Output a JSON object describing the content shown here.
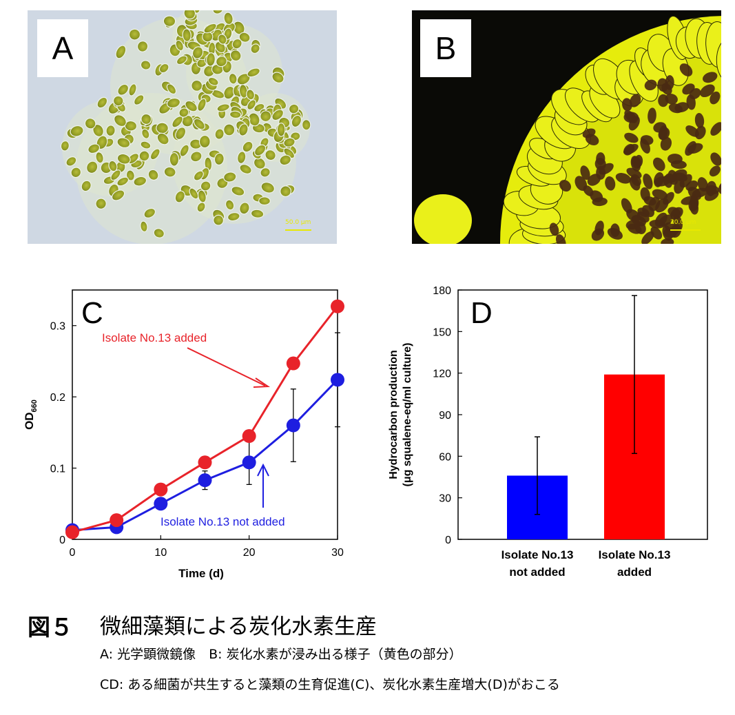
{
  "panels": {
    "a": {
      "letter": "A",
      "scale_label": "50.0 μm"
    },
    "b": {
      "letter": "B",
      "scale_label": "20.0 μm"
    },
    "c": {
      "letter": "C"
    },
    "d": {
      "letter": "D"
    }
  },
  "chart_data": [
    {
      "type": "line",
      "panel": "C",
      "title": "",
      "xlabel": "Time (d)",
      "ylabel": "OD660",
      "ylabel_main": "OD",
      "ylabel_sub": "660",
      "xlim": [
        0,
        30
      ],
      "ylim": [
        0,
        0.35
      ],
      "xticks": [
        0,
        10,
        20,
        30
      ],
      "yticks": [
        0,
        0.1,
        0.2,
        0.3
      ],
      "ytick_labels": [
        "0",
        "0.1",
        "0.2",
        "0.3"
      ],
      "grid": false,
      "series": [
        {
          "name": "Isolate No.13 added",
          "color": "#e8232a",
          "x": [
            0,
            5,
            10,
            15,
            20,
            25,
            30
          ],
          "y": [
            0.01,
            0.027,
            0.07,
            0.108,
            0.145,
            0.247,
            0.327
          ]
        },
        {
          "name": "Isolate No.13 not added",
          "color": "#1e1ee0",
          "x": [
            0,
            5,
            10,
            15,
            20,
            25,
            30
          ],
          "y": [
            0.013,
            0.017,
            0.05,
            0.083,
            0.108,
            0.16,
            0.224
          ],
          "error": [
            0.001,
            0.002,
            0.004,
            0.013,
            0.031,
            0.051,
            0.066
          ]
        }
      ]
    },
    {
      "type": "bar",
      "panel": "D",
      "title": "",
      "xlabel": "",
      "ylabel_line1": "Hydrocarbon production",
      "ylabel_line2": "(μg squalene-eq/ml culture)",
      "ylim": [
        0,
        180
      ],
      "yticks": [
        0,
        30,
        60,
        90,
        120,
        150,
        180
      ],
      "grid": false,
      "categories": [
        {
          "line1": "Isolate No.13",
          "line2": "not added"
        },
        {
          "line1": "Isolate No.13",
          "line2": "added"
        }
      ],
      "values": [
        46,
        119
      ],
      "errors": [
        28,
        57
      ],
      "colors": [
        "#0000ff",
        "#ff0000"
      ]
    }
  ],
  "caption": {
    "figure_label": "図５",
    "figure_title": "微細藻類による炭化水素生産",
    "line1": "A: 光学顕微鏡像　B: 炭化水素が浸み出る様子（黄色の部分）",
    "line2": "CD: ある細菌が共生すると藻類の生育促進(C)、炭化水素生産増大(D)がおこる"
  }
}
